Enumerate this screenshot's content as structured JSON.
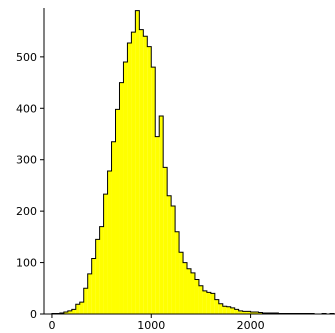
{
  "chart_data": {
    "type": "histogram",
    "title": "",
    "xlabel": "",
    "ylabel": "",
    "xlim": [
      -80,
      2850
    ],
    "ylim": [
      0,
      595
    ],
    "xticks": [
      0,
      1000,
      2000
    ],
    "yticks": [
      0,
      100,
      200,
      300,
      400,
      500
    ],
    "grid": false,
    "legend": "none",
    "bin_width": 40,
    "bin_start": 0,
    "fill_color": "#ffff00",
    "edge_color": "#000000",
    "counts": [
      1,
      1,
      2,
      4,
      6,
      9,
      19,
      23,
      50,
      78,
      108,
      145,
      170,
      233,
      278,
      335,
      398,
      450,
      490,
      527,
      548,
      590,
      553,
      540,
      520,
      480,
      345,
      385,
      285,
      230,
      210,
      160,
      120,
      100,
      88,
      80,
      67,
      55,
      45,
      42,
      40,
      28,
      20,
      15,
      14,
      12,
      9,
      6,
      5,
      5,
      4,
      4,
      3,
      2,
      2,
      2,
      2,
      1,
      1,
      1,
      1,
      1,
      1,
      1,
      1,
      1,
      0,
      0,
      1,
      0,
      1,
      0
    ]
  }
}
